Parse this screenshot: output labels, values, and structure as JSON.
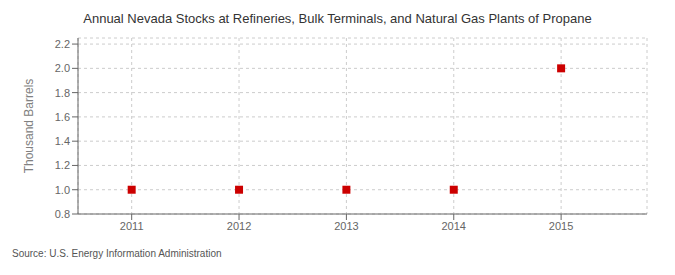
{
  "chart_data": {
    "type": "scatter",
    "title": "Annual Nevada Stocks at Refineries, Bulk Terminals, and Natural Gas Plants of Propane",
    "y_label": "Thousand Barrels",
    "annotations": [
      "Source: U.S. Energy Information Administration"
    ],
    "x": [
      2011,
      2012,
      2013,
      2014,
      2015
    ],
    "values": [
      1.0,
      1.0,
      1.0,
      1.0,
      2.0
    ],
    "xlim": [
      2010.5,
      2015.8
    ],
    "ylim": [
      0.8,
      2.25
    ],
    "xticks": [
      2011,
      2012,
      2013,
      2014,
      2015
    ],
    "yticks": [
      0.8,
      {
        "value": 1.0,
        "label": "1.0"
      },
      1.2,
      1.4,
      1.6,
      1.8,
      {
        "value": 2.0,
        "label": "2.0"
      },
      2.2
    ],
    "grid": true,
    "color": "#CC0000",
    "marker": "square"
  }
}
